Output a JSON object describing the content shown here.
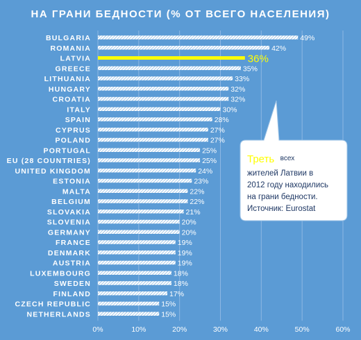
{
  "chart_data": {
    "type": "bar",
    "orientation": "horizontal",
    "title": "НА ГРАНИ БЕДНОСТИ (% ОТ ВСЕГО НАСЕЛЕНИЯ)",
    "categories": [
      "BULGARIA",
      "ROMANIA",
      "LATVIA",
      "GREECE",
      "LITHUANIA",
      "HUNGARY",
      "CROATIA",
      "ITALY",
      "SPAIN",
      "CYPRUS",
      "POLAND",
      "PORTUGAL",
      "EU (28 COUNTRIES)",
      "UNITED KINGDOM",
      "ESTONIA",
      "MALTA",
      "BELGIUM",
      "SLOVAKIA",
      "SLOVENIA",
      "GERMANY",
      "FRANCE",
      "DENMARK",
      "AUSTRIA",
      "LUXEMBOURG",
      "SWEDEN",
      "FINLAND",
      "CZECH REPUBLIC",
      "NETHERLANDS"
    ],
    "values": [
      49,
      42,
      36,
      35,
      33,
      32,
      32,
      30,
      28,
      27,
      27,
      25,
      25,
      24,
      23,
      22,
      22,
      21,
      20,
      20,
      19,
      19,
      19,
      18,
      18,
      17,
      15,
      15
    ],
    "value_labels": [
      "49%",
      "42%",
      "36%",
      "35%",
      "33%",
      "32%",
      "32%",
      "30%",
      "28%",
      "27%",
      "27%",
      "25%",
      "25%",
      "24%",
      "23%",
      "22%",
      "22%",
      "21%",
      "20%",
      "20%",
      "19%",
      "19%",
      "19%",
      "18%",
      "18%",
      "17%",
      "15%",
      "15%"
    ],
    "highlight": "LATVIA",
    "xlim": [
      0,
      60
    ],
    "xticks": [
      0,
      10,
      20,
      30,
      40,
      50,
      60
    ],
    "xtick_labels": [
      "0%",
      "10%",
      "20%",
      "30%",
      "40%",
      "50%",
      "60%"
    ],
    "grid": true,
    "colors": {
      "background": "#5b9bd5",
      "bar": "#ffffff",
      "highlight": "#ffff00",
      "callout_fill": "#ffffff",
      "callout_text": "#1f3864"
    }
  },
  "callout": {
    "lead": "Треть",
    "line1_rest": "всех",
    "line2": "жителей Латвии в",
    "line3": "2012 году находились",
    "line4": "на грани бедности.",
    "line5": "Источник: Eurostat"
  }
}
